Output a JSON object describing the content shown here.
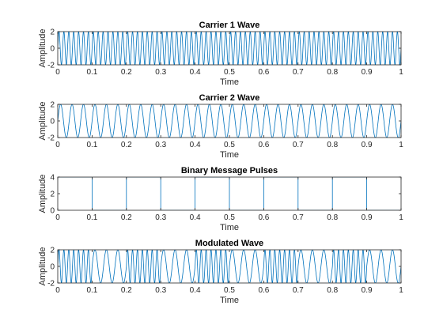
{
  "chart_data": [
    {
      "type": "line",
      "title": "Carrier 1 Wave",
      "xlabel": "Time",
      "ylabel": "Amplitude",
      "xlim": [
        0,
        1
      ],
      "ylim": [
        -2,
        2
      ],
      "xticks": [
        "0",
        "0.1",
        "0.2",
        "0.3",
        "0.4",
        "0.5",
        "0.6",
        "0.7",
        "0.8",
        "0.9",
        "1"
      ],
      "yticks": [
        "-2",
        "0",
        "2"
      ],
      "grid": false,
      "series": [
        {
          "kind": "sine",
          "amplitude": 2,
          "frequency_hz": 70,
          "color": "#0072BD"
        }
      ]
    },
    {
      "type": "line",
      "title": "Carrier 2 Wave",
      "xlabel": "Time",
      "ylabel": "Amplitude",
      "xlim": [
        0,
        1
      ],
      "ylim": [
        -2,
        2
      ],
      "xticks": [
        "0",
        "0.1",
        "0.2",
        "0.3",
        "0.4",
        "0.5",
        "0.6",
        "0.7",
        "0.8",
        "0.9",
        "1"
      ],
      "yticks": [
        "-2",
        "0",
        "2"
      ],
      "grid": false,
      "series": [
        {
          "kind": "sine",
          "amplitude": 2,
          "frequency_hz": 30,
          "color": "#0072BD"
        }
      ]
    },
    {
      "type": "line",
      "title": "Binary Message Pulses",
      "xlabel": "Time",
      "ylabel": "Amplitude",
      "xlim": [
        0,
        1
      ],
      "ylim": [
        0,
        4
      ],
      "xticks": [
        "0",
        "0.1",
        "0.2",
        "0.3",
        "0.4",
        "0.5",
        "0.6",
        "0.7",
        "0.8",
        "0.9",
        "1"
      ],
      "yticks": [
        "0",
        "2",
        "4"
      ],
      "grid": false,
      "series": [
        {
          "kind": "square",
          "high": 4,
          "low": 0,
          "period": 0.2,
          "color": "#0072BD"
        }
      ]
    },
    {
      "type": "line",
      "title": "Modulated Wave",
      "xlabel": "Time",
      "ylabel": "Amplitude",
      "xlim": [
        0,
        1
      ],
      "ylim": [
        -2,
        2
      ],
      "xticks": [
        "0",
        "0.1",
        "0.2",
        "0.3",
        "0.4",
        "0.5",
        "0.6",
        "0.7",
        "0.8",
        "0.9",
        "1"
      ],
      "yticks": [
        "-2",
        "0",
        "2"
      ],
      "grid": false,
      "series": [
        {
          "kind": "fsk",
          "amplitude": 2,
          "frequency_high_hz": 70,
          "frequency_low_hz": 30,
          "period": 0.2,
          "color": "#0072BD"
        }
      ]
    }
  ]
}
